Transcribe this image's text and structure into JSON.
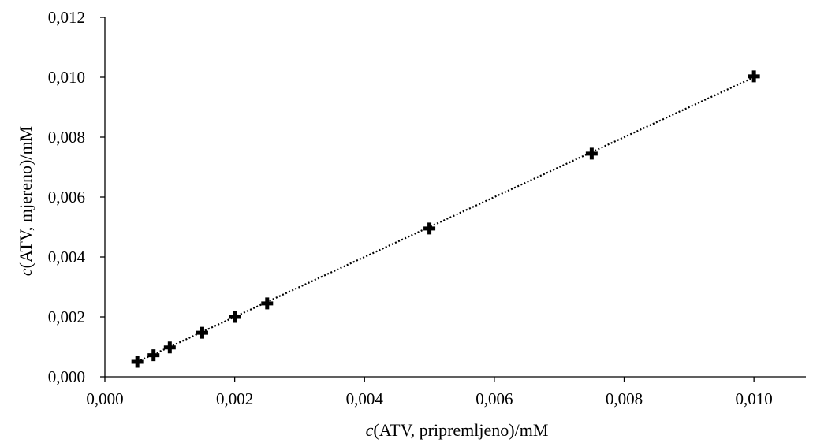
{
  "chart_data": {
    "type": "scatter",
    "title": "",
    "xlabel": {
      "italic": "c",
      "rest": "(ATV, pripremljeno)/mM"
    },
    "ylabel": {
      "italic": "c",
      "rest": "(ATV, mjereno)/mM"
    },
    "xlim": [
      0,
      0.0108
    ],
    "ylim": [
      0,
      0.012
    ],
    "xticks": [
      0,
      0.002,
      0.004,
      0.006,
      0.008,
      0.01
    ],
    "xtick_labels": [
      "0,000",
      "0,002",
      "0,004",
      "0,006",
      "0,008",
      "0,010"
    ],
    "yticks": [
      0,
      0.002,
      0.004,
      0.006,
      0.008,
      0.01,
      0.012
    ],
    "ytick_labels": [
      "0,000",
      "0,002",
      "0,004",
      "0,006",
      "0,008",
      "0,010",
      "0,012"
    ],
    "grid": false,
    "legend": "none",
    "marker": "plus",
    "trendline": {
      "style": "dotted",
      "x": [
        0.0005,
        0.01
      ],
      "y": [
        0.0005,
        0.01
      ]
    },
    "series": [
      {
        "x": [
          0.0005,
          0.00075,
          0.001,
          0.0015,
          0.002,
          0.0025,
          0.005,
          0.0075,
          0.01
        ],
        "y": [
          0.0005,
          0.00072,
          0.00098,
          0.00147,
          0.002,
          0.00245,
          0.00495,
          0.00745,
          0.01003
        ]
      }
    ],
    "colors": {
      "marker": "#000000",
      "axis": "#000000",
      "text": "#000000"
    }
  }
}
